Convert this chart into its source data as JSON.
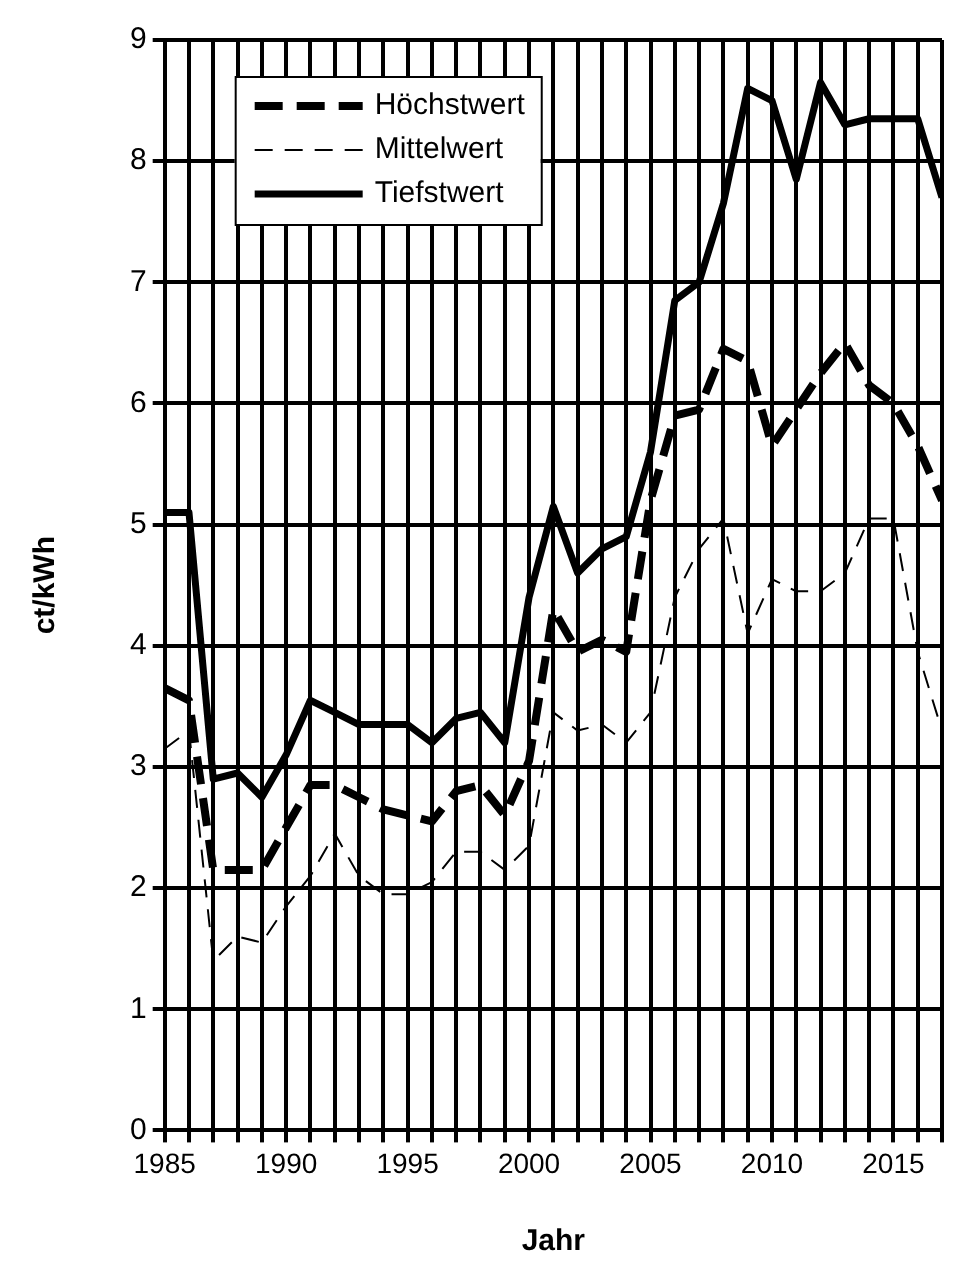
{
  "chart_data": {
    "type": "line",
    "xlabel": "Jahr",
    "ylabel": "ct/kWh",
    "x": [
      1985,
      1986,
      1987,
      1988,
      1989,
      1990,
      1991,
      1992,
      1993,
      1994,
      1995,
      1996,
      1997,
      1998,
      1999,
      2000,
      2001,
      2002,
      2003,
      2004,
      2005,
      2006,
      2007,
      2008,
      2009,
      2010,
      2011,
      2012,
      2013,
      2014,
      2015,
      2016,
      2017
    ],
    "series": [
      {
        "name": "Höchstwert",
        "color": "#000000",
        "line_style": "dashed",
        "values": [
          3.65,
          3.55,
          2.15,
          2.15,
          2.15,
          2.5,
          2.85,
          2.85,
          2.75,
          2.65,
          2.6,
          2.55,
          2.8,
          2.85,
          2.6,
          3.05,
          4.3,
          3.95,
          4.05,
          3.95,
          5.2,
          5.9,
          5.95,
          6.45,
          6.35,
          5.65,
          5.95,
          6.25,
          6.5,
          6.15,
          6.0,
          5.65,
          5.2
        ]
      },
      {
        "name": "Mittelwert",
        "color": "#000000",
        "line_style": "dashed",
        "values": [
          3.15,
          3.3,
          1.4,
          1.6,
          1.55,
          1.85,
          2.1,
          2.45,
          2.1,
          1.95,
          1.95,
          2.05,
          2.3,
          2.3,
          2.15,
          2.35,
          3.45,
          3.3,
          3.35,
          3.2,
          3.45,
          4.4,
          4.8,
          5.05,
          4.1,
          4.55,
          4.45,
          4.45,
          4.6,
          5.05,
          5.05,
          3.95,
          3.3
        ]
      },
      {
        "name": "Tiefstwert",
        "color": "#000000",
        "line_style": "solid",
        "values": [
          5.1,
          5.1,
          2.9,
          2.95,
          2.75,
          3.1,
          3.55,
          3.45,
          3.35,
          3.35,
          3.35,
          3.2,
          3.4,
          3.45,
          3.2,
          4.4,
          5.15,
          4.6,
          4.8,
          4.9,
          5.6,
          6.85,
          7.0,
          7.65,
          8.6,
          8.5,
          7.85,
          8.65,
          8.3,
          8.35,
          8.35,
          8.35,
          7.7
        ]
      }
    ],
    "xlim": [
      1985,
      2017
    ],
    "xticks": [
      1985,
      {
        "value": 1986,
        "label": null
      },
      {
        "value": 1987,
        "label": null
      },
      {
        "value": 1988,
        "label": null
      },
      {
        "value": 1989,
        "label": null
      },
      1990,
      {
        "value": 1991,
        "label": null
      },
      {
        "value": 1992,
        "label": null
      },
      {
        "value": 1993,
        "label": null
      },
      {
        "value": 1994,
        "label": null
      },
      1995,
      {
        "value": 1996,
        "label": null
      },
      {
        "value": 1997,
        "label": null
      },
      {
        "value": 1998,
        "label": null
      },
      {
        "value": 1999,
        "label": null
      },
      2000,
      {
        "value": 2001,
        "label": null
      },
      {
        "value": 2002,
        "label": null
      },
      {
        "value": 2003,
        "label": null
      },
      {
        "value": 2004,
        "label": null
      },
      2005,
      {
        "value": 2006,
        "label": null
      },
      {
        "value": 2007,
        "label": null
      },
      {
        "value": 2008,
        "label": null
      },
      {
        "value": 2009,
        "label": null
      },
      2010,
      {
        "value": 2011,
        "label": null
      },
      {
        "value": 2012,
        "label": null
      },
      {
        "value": 2013,
        "label": null
      },
      {
        "value": 2014,
        "label": null
      },
      2015,
      {
        "value": 2016,
        "label": null
      },
      {
        "value": 2017,
        "label": null
      }
    ],
    "ylim": [
      0,
      9
    ],
    "yticks": [
      0,
      1,
      2,
      3,
      4,
      5,
      6,
      7,
      8,
      9
    ],
    "grid": true,
    "legend": "top left",
    "marker": "none"
  }
}
